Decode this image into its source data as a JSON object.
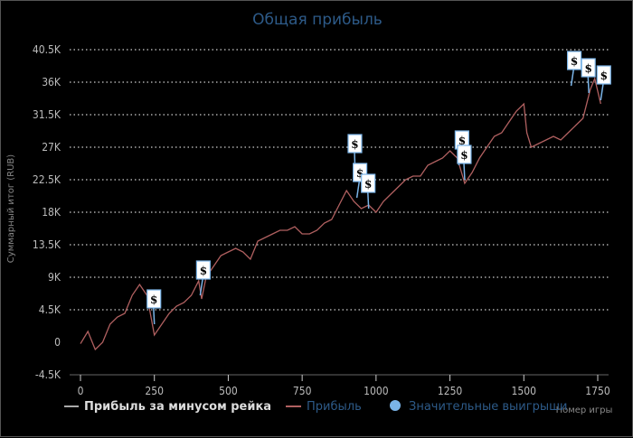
{
  "chart_data": {
    "type": "line",
    "title": "Общая прибыль",
    "xlabel": "Номер игры",
    "ylabel": "Суммарный итог (RUB)",
    "xlim": [
      0,
      1775
    ],
    "ylim": [
      -4500,
      40500
    ],
    "x_ticks": [
      "0",
      "250",
      "500",
      "750",
      "1000",
      "1250",
      "1500",
      "1750"
    ],
    "x_tick_values": [
      0,
      250,
      500,
      750,
      1000,
      1250,
      1500,
      1750
    ],
    "y_ticks": [
      "-4.5K",
      "0",
      "4.5K",
      "9K",
      "13.5K",
      "18K",
      "22.5K",
      "27K",
      "31.5K",
      "36K",
      "40.5K"
    ],
    "y_tick_values": [
      -4500,
      0,
      4500,
      9000,
      13500,
      18000,
      22500,
      27000,
      31500,
      36000,
      40500
    ],
    "grid": "horizontal dotted",
    "legend_placement": "bottom",
    "legend": [
      {
        "name": "Прибыль за минусом рейка",
        "color": "#aaaaaa",
        "text_color": "#dddddd"
      },
      {
        "name": "Прибыль",
        "color": "#b06060",
        "text_color": "#2d5a88"
      },
      {
        "name": "Значительные выигрыши",
        "color": "#7ab4e8",
        "text_color": "#2d5a88"
      }
    ],
    "series": [
      {
        "name": "Прибыль",
        "color": "#b06060",
        "x": [
          0,
          25,
          50,
          75,
          100,
          125,
          150,
          175,
          200,
          225,
          250,
          275,
          300,
          325,
          350,
          375,
          400,
          410,
          425,
          450,
          475,
          500,
          525,
          550,
          575,
          600,
          625,
          650,
          675,
          700,
          725,
          750,
          775,
          800,
          825,
          850,
          875,
          900,
          925,
          950,
          975,
          1000,
          1025,
          1050,
          1075,
          1100,
          1125,
          1150,
          1175,
          1200,
          1225,
          1250,
          1275,
          1300,
          1325,
          1350,
          1375,
          1400,
          1425,
          1450,
          1475,
          1500,
          1510,
          1525,
          1550,
          1575,
          1600,
          1625,
          1650,
          1675,
          1700,
          1725,
          1740,
          1760
        ],
        "y": [
          -200,
          1500,
          -1000,
          0,
          2500,
          3500,
          4000,
          6500,
          8000,
          6500,
          1000,
          2500,
          4000,
          5000,
          5500,
          6500,
          8500,
          6000,
          9000,
          10500,
          12000,
          12500,
          13000,
          12500,
          11500,
          14000,
          14500,
          15000,
          15500,
          15500,
          16000,
          15000,
          15000,
          15500,
          16500,
          17000,
          19000,
          21000,
          19500,
          18500,
          19000,
          18000,
          19500,
          20500,
          21500,
          22500,
          23000,
          23000,
          24500,
          25000,
          25500,
          26500,
          25500,
          22000,
          23500,
          25500,
          27000,
          28500,
          29000,
          30500,
          32000,
          33000,
          29000,
          27000,
          27500,
          28000,
          28500,
          28000,
          29000,
          30000,
          31000,
          35000,
          36500,
          33000
        ]
      }
    ],
    "significant_wins": {
      "name": "Значительные выигрыши",
      "marker_text": "$",
      "x": [
        250,
        405,
        930,
        935,
        975,
        1280,
        1300,
        1660,
        1720,
        1760
      ],
      "y": [
        2500,
        6500,
        22500,
        20000,
        18500,
        24500,
        22500,
        35500,
        34500,
        33500
      ]
    }
  }
}
